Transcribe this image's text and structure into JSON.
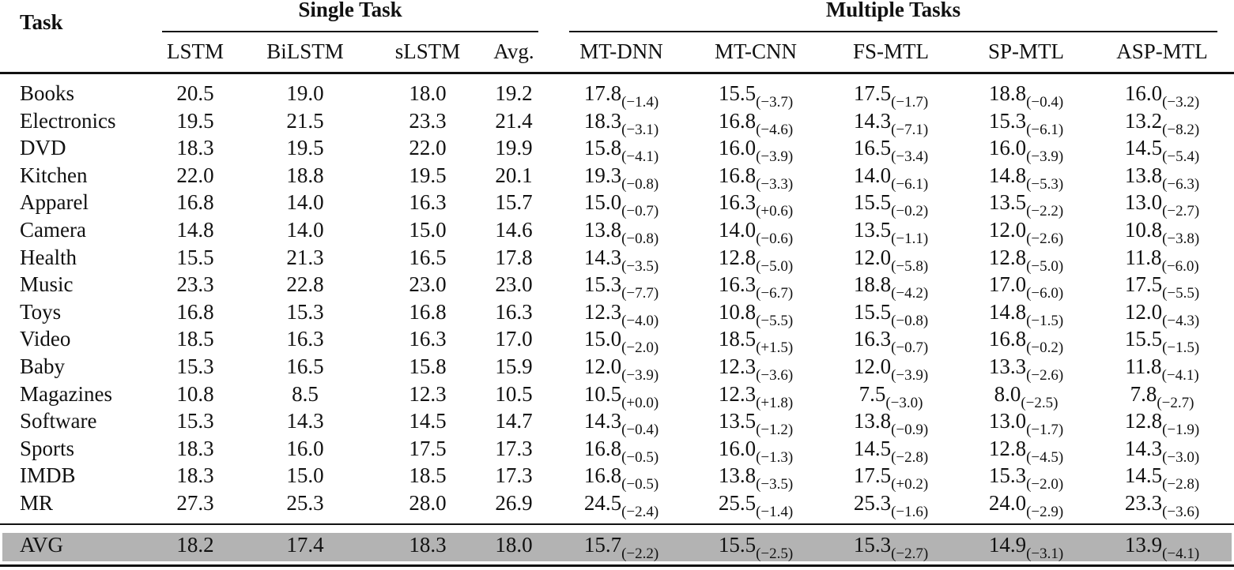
{
  "table": {
    "header": {
      "task": "Task",
      "groups": [
        "Single Task",
        "Multiple Tasks"
      ],
      "columns": [
        "LSTM",
        "BiLSTM",
        "sLSTM",
        "Avg.",
        "MT-DNN",
        "MT-CNN",
        "FS-MTL",
        "SP-MTL",
        "ASP-MTL"
      ]
    },
    "rows": [
      {
        "task": "Books",
        "single": [
          "20.5",
          "19.0",
          "18.0",
          "19.2"
        ],
        "multi": [
          {
            "value": "17.8",
            "delta": "(−1.4)"
          },
          {
            "value": "15.5",
            "delta": "(−3.7)"
          },
          {
            "value": "17.5",
            "delta": "(−1.7)"
          },
          {
            "value": "18.8",
            "delta": "(−0.4)"
          },
          {
            "value": "16.0",
            "delta": "(−3.2)"
          }
        ]
      },
      {
        "task": "Electronics",
        "single": [
          "19.5",
          "21.5",
          "23.3",
          "21.4"
        ],
        "multi": [
          {
            "value": "18.3",
            "delta": "(−3.1)"
          },
          {
            "value": "16.8",
            "delta": "(−4.6)"
          },
          {
            "value": "14.3",
            "delta": "(−7.1)"
          },
          {
            "value": "15.3",
            "delta": "(−6.1)"
          },
          {
            "value": "13.2",
            "delta": "(−8.2)"
          }
        ]
      },
      {
        "task": "DVD",
        "single": [
          "18.3",
          "19.5",
          "22.0",
          "19.9"
        ],
        "multi": [
          {
            "value": "15.8",
            "delta": "(−4.1)"
          },
          {
            "value": "16.0",
            "delta": "(−3.9)"
          },
          {
            "value": "16.5",
            "delta": "(−3.4)"
          },
          {
            "value": "16.0",
            "delta": "(−3.9)"
          },
          {
            "value": "14.5",
            "delta": "(−5.4)"
          }
        ]
      },
      {
        "task": "Kitchen",
        "single": [
          "22.0",
          "18.8",
          "19.5",
          "20.1"
        ],
        "multi": [
          {
            "value": "19.3",
            "delta": "(−0.8)"
          },
          {
            "value": "16.8",
            "delta": "(−3.3)"
          },
          {
            "value": "14.0",
            "delta": "(−6.1)"
          },
          {
            "value": "14.8",
            "delta": "(−5.3)"
          },
          {
            "value": "13.8",
            "delta": "(−6.3)"
          }
        ]
      },
      {
        "task": "Apparel",
        "single": [
          "16.8",
          "14.0",
          "16.3",
          "15.7"
        ],
        "multi": [
          {
            "value": "15.0",
            "delta": "(−0.7)"
          },
          {
            "value": "16.3",
            "delta": "(+0.6)"
          },
          {
            "value": "15.5",
            "delta": "(−0.2)"
          },
          {
            "value": "13.5",
            "delta": "(−2.2)"
          },
          {
            "value": "13.0",
            "delta": "(−2.7)"
          }
        ]
      },
      {
        "task": "Camera",
        "single": [
          "14.8",
          "14.0",
          "15.0",
          "14.6"
        ],
        "multi": [
          {
            "value": "13.8",
            "delta": "(−0.8)"
          },
          {
            "value": "14.0",
            "delta": "(−0.6)"
          },
          {
            "value": "13.5",
            "delta": "(−1.1)"
          },
          {
            "value": "12.0",
            "delta": "(−2.6)"
          },
          {
            "value": "10.8",
            "delta": "(−3.8)"
          }
        ]
      },
      {
        "task": "Health",
        "single": [
          "15.5",
          "21.3",
          "16.5",
          "17.8"
        ],
        "multi": [
          {
            "value": "14.3",
            "delta": "(−3.5)"
          },
          {
            "value": "12.8",
            "delta": "(−5.0)"
          },
          {
            "value": "12.0",
            "delta": "(−5.8)"
          },
          {
            "value": "12.8",
            "delta": "(−5.0)"
          },
          {
            "value": "11.8",
            "delta": "(−6.0)"
          }
        ]
      },
      {
        "task": "Music",
        "single": [
          "23.3",
          "22.8",
          "23.0",
          "23.0"
        ],
        "multi": [
          {
            "value": "15.3",
            "delta": "(−7.7)"
          },
          {
            "value": "16.3",
            "delta": "(−6.7)"
          },
          {
            "value": "18.8",
            "delta": "(−4.2)"
          },
          {
            "value": "17.0",
            "delta": "(−6.0)"
          },
          {
            "value": "17.5",
            "delta": "(−5.5)"
          }
        ]
      },
      {
        "task": "Toys",
        "single": [
          "16.8",
          "15.3",
          "16.8",
          "16.3"
        ],
        "multi": [
          {
            "value": "12.3",
            "delta": "(−4.0)"
          },
          {
            "value": "10.8",
            "delta": "(−5.5)"
          },
          {
            "value": "15.5",
            "delta": "(−0.8)"
          },
          {
            "value": "14.8",
            "delta": "(−1.5)"
          },
          {
            "value": "12.0",
            "delta": "(−4.3)"
          }
        ]
      },
      {
        "task": "Video",
        "single": [
          "18.5",
          "16.3",
          "16.3",
          "17.0"
        ],
        "multi": [
          {
            "value": "15.0",
            "delta": "(−2.0)"
          },
          {
            "value": "18.5",
            "delta": "(+1.5)"
          },
          {
            "value": "16.3",
            "delta": "(−0.7)"
          },
          {
            "value": "16.8",
            "delta": "(−0.2)"
          },
          {
            "value": "15.5",
            "delta": "(−1.5)"
          }
        ]
      },
      {
        "task": "Baby",
        "single": [
          "15.3",
          "16.5",
          "15.8",
          "15.9"
        ],
        "multi": [
          {
            "value": "12.0",
            "delta": "(−3.9)"
          },
          {
            "value": "12.3",
            "delta": "(−3.6)"
          },
          {
            "value": "12.0",
            "delta": "(−3.9)"
          },
          {
            "value": "13.3",
            "delta": "(−2.6)"
          },
          {
            "value": "11.8",
            "delta": "(−4.1)"
          }
        ]
      },
      {
        "task": "Magazines",
        "single": [
          "10.8",
          "8.5",
          "12.3",
          "10.5"
        ],
        "multi": [
          {
            "value": "10.5",
            "delta": "(+0.0)"
          },
          {
            "value": "12.3",
            "delta": "(+1.8)"
          },
          {
            "value": "7.5",
            "delta": "(−3.0)"
          },
          {
            "value": "8.0",
            "delta": "(−2.5)"
          },
          {
            "value": "7.8",
            "delta": "(−2.7)"
          }
        ]
      },
      {
        "task": "Software",
        "single": [
          "15.3",
          "14.3",
          "14.5",
          "14.7"
        ],
        "multi": [
          {
            "value": "14.3",
            "delta": "(−0.4)"
          },
          {
            "value": "13.5",
            "delta": "(−1.2)"
          },
          {
            "value": "13.8",
            "delta": "(−0.9)"
          },
          {
            "value": "13.0",
            "delta": "(−1.7)"
          },
          {
            "value": "12.8",
            "delta": "(−1.9)"
          }
        ]
      },
      {
        "task": "Sports",
        "single": [
          "18.3",
          "16.0",
          "17.5",
          "17.3"
        ],
        "multi": [
          {
            "value": "16.8",
            "delta": "(−0.5)"
          },
          {
            "value": "16.0",
            "delta": "(−1.3)"
          },
          {
            "value": "14.5",
            "delta": "(−2.8)"
          },
          {
            "value": "12.8",
            "delta": "(−4.5)"
          },
          {
            "value": "14.3",
            "delta": "(−3.0)"
          }
        ]
      },
      {
        "task": "IMDB",
        "single": [
          "18.3",
          "15.0",
          "18.5",
          "17.3"
        ],
        "multi": [
          {
            "value": "16.8",
            "delta": "(−0.5)"
          },
          {
            "value": "13.8",
            "delta": "(−3.5)"
          },
          {
            "value": "17.5",
            "delta": "(+0.2)"
          },
          {
            "value": "15.3",
            "delta": "(−2.0)"
          },
          {
            "value": "14.5",
            "delta": "(−2.8)"
          }
        ]
      },
      {
        "task": "MR",
        "single": [
          "27.3",
          "25.3",
          "28.0",
          "26.9"
        ],
        "multi": [
          {
            "value": "24.5",
            "delta": "(−2.4)"
          },
          {
            "value": "25.5",
            "delta": "(−1.4)"
          },
          {
            "value": "25.3",
            "delta": "(−1.6)"
          },
          {
            "value": "24.0",
            "delta": "(−2.9)"
          },
          {
            "value": "23.3",
            "delta": "(−3.6)"
          }
        ]
      }
    ],
    "avg_row": {
      "task": "AVG",
      "single": [
        "18.2",
        "17.4",
        "18.3",
        "18.0"
      ],
      "multi": [
        {
          "value": "15.7",
          "delta": "(−2.2)"
        },
        {
          "value": "15.5",
          "delta": "(−2.5)"
        },
        {
          "value": "15.3",
          "delta": "(−2.7)"
        },
        {
          "value": "14.9",
          "delta": "(−3.1)"
        },
        {
          "value": "13.9",
          "delta": "(−4.1)"
        }
      ]
    }
  }
}
